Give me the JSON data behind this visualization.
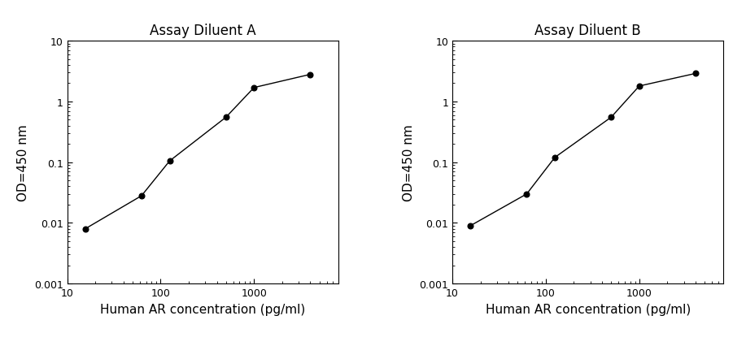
{
  "plot_A": {
    "title": "Assay Diluent A",
    "x": [
      15.625,
      62.5,
      125,
      500,
      1000,
      4000
    ],
    "y": [
      0.008,
      0.028,
      0.105,
      0.55,
      1.7,
      2.8
    ],
    "xlabel": "Human AR concentration (pg/ml)",
    "ylabel": "OD=450 nm",
    "xlim": [
      10,
      8000
    ],
    "ylim": [
      0.001,
      10
    ]
  },
  "plot_B": {
    "title": "Assay Diluent B",
    "x": [
      15.625,
      62.5,
      125,
      500,
      1000,
      4000
    ],
    "y": [
      0.009,
      0.03,
      0.12,
      0.55,
      1.8,
      2.9
    ],
    "xlabel": "Human AR concentration (pg/ml)",
    "ylabel": "OD=450 nm",
    "xlim": [
      10,
      8000
    ],
    "ylim": [
      0.001,
      10
    ]
  },
  "line_color": "#000000",
  "marker": "o",
  "markersize": 5,
  "markerfacecolor": "#000000",
  "linewidth": 1.0,
  "title_fontsize": 12,
  "label_fontsize": 11,
  "tick_fontsize": 9,
  "background_color": "#ffffff",
  "yticks": [
    0.001,
    0.01,
    0.1,
    1,
    10
  ],
  "ytick_labels": [
    "0.001",
    "0.01",
    "0.1",
    "1",
    "10"
  ],
  "xticks": [
    10,
    100,
    1000
  ],
  "xtick_labels": [
    "10",
    "100",
    "1000"
  ]
}
